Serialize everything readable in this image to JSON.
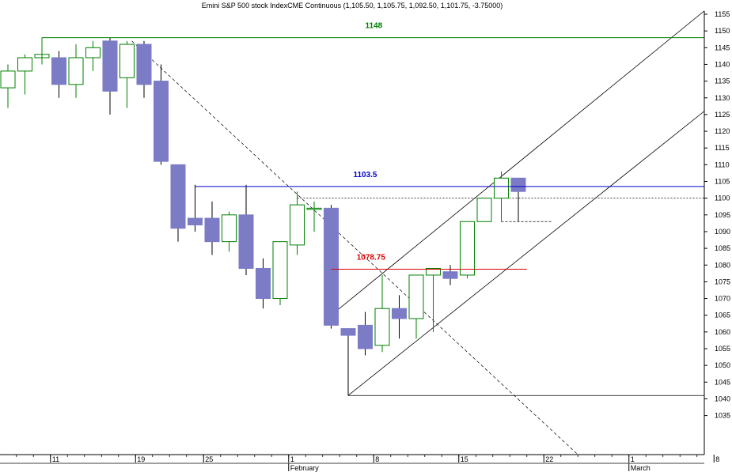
{
  "chart_data": {
    "type": "candlestick",
    "title": "Emini S&P 500 stock IndexCME Continuous (1,105.50, 1,105.75, 1,092.50, 1,101.75, -3.75000)",
    "ylim": [
      1030,
      1158
    ],
    "y_ticks": [
      1035,
      1040,
      1045,
      1050,
      1055,
      1060,
      1065,
      1070,
      1075,
      1080,
      1085,
      1090,
      1095,
      1100,
      1105,
      1110,
      1115,
      1120,
      1125,
      1130,
      1135,
      1140,
      1145,
      1150,
      1155
    ],
    "x_ticks": [
      {
        "label": "11",
        "bar": 2.5
      },
      {
        "label": "19",
        "bar": 7.5
      },
      {
        "label": "25",
        "bar": 11.5
      },
      {
        "label": "1",
        "bar": 16.5
      },
      {
        "label": "8",
        "bar": 21.5
      },
      {
        "label": "15",
        "bar": 26.5
      },
      {
        "label": "22",
        "bar": 31.5
      },
      {
        "label": "1",
        "bar": 36.5
      },
      {
        "label": "8",
        "bar": 41.5
      }
    ],
    "month_labels": [
      {
        "label": "February",
        "bar": 16.5
      },
      {
        "label": "March",
        "bar": 36.5
      }
    ],
    "candles": [
      {
        "o": 1133,
        "h": 1140,
        "l": 1127,
        "c": 1138
      },
      {
        "o": 1138,
        "h": 1143,
        "l": 1131,
        "c": 1142
      },
      {
        "o": 1142,
        "h": 1148,
        "l": 1140,
        "c": 1143
      },
      {
        "o": 1142,
        "h": 1144,
        "l": 1130,
        "c": 1134
      },
      {
        "o": 1134,
        "h": 1146,
        "l": 1130,
        "c": 1142
      },
      {
        "o": 1142,
        "h": 1147,
        "l": 1138,
        "c": 1145
      },
      {
        "o": 1147,
        "h": 1148,
        "l": 1125,
        "c": 1132
      },
      {
        "o": 1136,
        "h": 1147,
        "l": 1127,
        "c": 1146
      },
      {
        "o": 1146,
        "h": 1147,
        "l": 1130,
        "c": 1134
      },
      {
        "o": 1135,
        "h": 1140,
        "l": 1110,
        "c": 1111
      },
      {
        "o": 1110,
        "h": 1110,
        "l": 1087,
        "c": 1091
      },
      {
        "o": 1094,
        "h": 1104,
        "l": 1090,
        "c": 1092
      },
      {
        "o": 1094,
        "h": 1099,
        "l": 1083,
        "c": 1087
      },
      {
        "o": 1087,
        "h": 1096,
        "l": 1084,
        "c": 1095
      },
      {
        "o": 1095,
        "h": 1104,
        "l": 1077,
        "c": 1079
      },
      {
        "o": 1079,
        "h": 1082,
        "l": 1067,
        "c": 1070
      },
      {
        "o": 1070,
        "h": 1087,
        "l": 1068,
        "c": 1087
      },
      {
        "o": 1086,
        "h": 1102,
        "l": 1083,
        "c": 1098
      },
      {
        "o": 1097,
        "h": 1099,
        "l": 1090,
        "c": 1097
      },
      {
        "o": 1097,
        "h": 1098,
        "l": 1061,
        "c": 1062
      },
      {
        "o": 1061,
        "h": 1061,
        "l": 1041,
        "c": 1059
      },
      {
        "o": 1062,
        "h": 1066,
        "l": 1053,
        "c": 1055
      },
      {
        "o": 1056,
        "h": 1077,
        "l": 1054,
        "c": 1067
      },
      {
        "o": 1067,
        "h": 1071,
        "l": 1058,
        "c": 1064
      },
      {
        "o": 1064,
        "h": 1077,
        "l": 1058,
        "c": 1077
      },
      {
        "o": 1077,
        "h": 1079,
        "l": 1060,
        "c": 1079
      },
      {
        "o": 1078,
        "h": 1080,
        "l": 1074,
        "c": 1076
      },
      {
        "o": 1077,
        "h": 1093,
        "l": 1076,
        "c": 1093
      },
      {
        "o": 1093,
        "h": 1100,
        "l": 1093,
        "c": 1100
      },
      {
        "o": 1100,
        "h": 1108,
        "l": 1093,
        "c": 1106
      },
      {
        "o": 1106,
        "h": 1106,
        "l": 1093,
        "c": 1102
      }
    ],
    "levels": [
      {
        "label": "1148",
        "value": 1148,
        "color": "#008000"
      },
      {
        "label": "1103.5",
        "value": 1103.5,
        "color": "#0000cc"
      },
      {
        "label": "1078.75",
        "value": 1078.75,
        "color": "#dd0000"
      }
    ],
    "up_color": "#008000",
    "down_color": "#7b7bc6",
    "background": "#ffffff"
  }
}
